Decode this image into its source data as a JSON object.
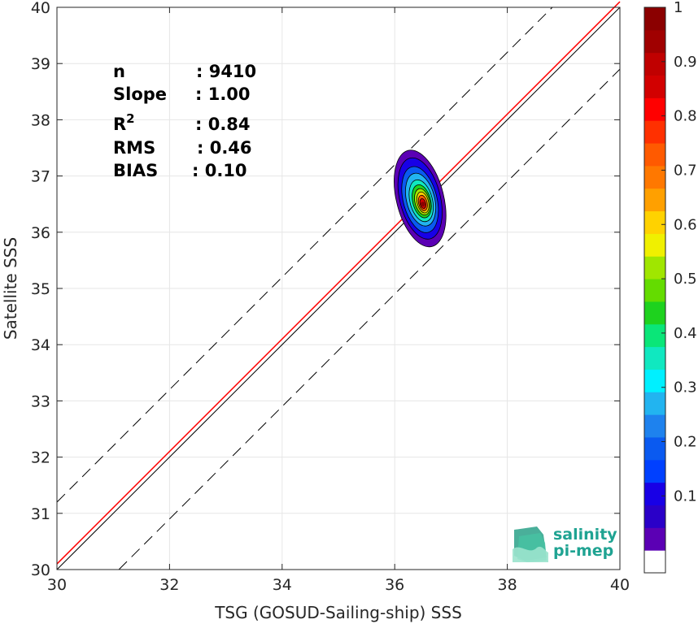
{
  "chart_data": {
    "type": "scatter-density",
    "xlabel": "TSG (GOSUD-Sailing-ship) SSS",
    "ylabel": "Satellite SSS",
    "xlim": [
      30,
      40
    ],
    "ylim": [
      30,
      40
    ],
    "xticks": [
      30,
      32,
      34,
      36,
      38,
      40
    ],
    "yticks": [
      30,
      31,
      32,
      33,
      34,
      35,
      36,
      37,
      38,
      39,
      40
    ],
    "grid": true,
    "lines": [
      {
        "name": "identity",
        "color": "#000000",
        "style": "solid",
        "points": [
          [
            30,
            30
          ],
          [
            40,
            40
          ]
        ]
      },
      {
        "name": "regression",
        "color": "#ff0000",
        "style": "solid",
        "points": [
          [
            30,
            30.1
          ],
          [
            40,
            40.1
          ]
        ]
      },
      {
        "name": "upper-bound",
        "color": "#000000",
        "style": "dashed",
        "points": [
          [
            30,
            31.2
          ],
          [
            38.8,
            40
          ]
        ]
      },
      {
        "name": "lower-bound",
        "color": "#000000",
        "style": "dashed",
        "points": [
          [
            31.1,
            30
          ],
          [
            40,
            38.9
          ]
        ]
      }
    ],
    "density_peak": {
      "x": 36.5,
      "y": 36.5
    },
    "density_levels": [
      {
        "level": 0.05,
        "color": "#5b00b4",
        "rx": 0.42,
        "ry": 0.88,
        "cx": 36.45,
        "cy": 36.6
      },
      {
        "level": 0.15,
        "color": "#1800e6",
        "rx": 0.36,
        "ry": 0.74,
        "cx": 36.45,
        "cy": 36.6
      },
      {
        "level": 0.25,
        "color": "#0a5af0",
        "rx": 0.3,
        "ry": 0.6,
        "cx": 36.45,
        "cy": 36.58
      },
      {
        "level": 0.35,
        "color": "#22b4f0",
        "rx": 0.25,
        "ry": 0.48,
        "cx": 36.46,
        "cy": 36.58
      },
      {
        "level": 0.45,
        "color": "#10e8c0",
        "rx": 0.2,
        "ry": 0.38,
        "cx": 36.47,
        "cy": 36.56
      },
      {
        "level": 0.55,
        "color": "#1ed21e",
        "rx": 0.16,
        "ry": 0.3,
        "cx": 36.48,
        "cy": 36.55
      },
      {
        "level": 0.65,
        "color": "#a0e600",
        "rx": 0.13,
        "ry": 0.24,
        "cx": 36.49,
        "cy": 36.54
      },
      {
        "level": 0.75,
        "color": "#ffd200",
        "rx": 0.1,
        "ry": 0.19,
        "cx": 36.5,
        "cy": 36.53
      },
      {
        "level": 0.85,
        "color": "#ff5a00",
        "rx": 0.075,
        "ry": 0.14,
        "cx": 36.5,
        "cy": 36.52
      },
      {
        "level": 0.95,
        "color": "#d20000",
        "rx": 0.05,
        "ry": 0.09,
        "cx": 36.5,
        "cy": 36.51
      }
    ],
    "stats": [
      {
        "label": "n",
        "value": ": 9410"
      },
      {
        "label": "Slope",
        "value": ": 1.00"
      },
      {
        "label": "R",
        "sup": "2",
        "value": ": 0.84"
      },
      {
        "label": "RMS",
        "value": ": 0.46"
      },
      {
        "label": "BIAS",
        "value": ": 0.10"
      }
    ],
    "colorbar": {
      "ticks": [
        0.1,
        0.2,
        0.3,
        0.4,
        0.5,
        0.6,
        0.7,
        0.8,
        0.9,
        1
      ],
      "tick_labels": [
        "0.1",
        "0.2",
        "0.3",
        "0.4",
        "0.5",
        "0.6",
        "0.7",
        "0.8",
        "0.9",
        "1"
      ],
      "colors": [
        "#ffffff",
        "#5b00b4",
        "#2a00c8",
        "#1800e6",
        "#0040ff",
        "#0a5af0",
        "#1e82ee",
        "#22b4f0",
        "#00f0ff",
        "#10e8c0",
        "#0ae678",
        "#1ed21e",
        "#64dc00",
        "#a0e600",
        "#f0f000",
        "#ffd200",
        "#ffa000",
        "#ff7800",
        "#ff5a00",
        "#ff3000",
        "#ff0000",
        "#d20000",
        "#c00000",
        "#a00000",
        "#8b0000"
      ]
    }
  },
  "logo": {
    "line1": "salinity",
    "line2": "pi-mep"
  }
}
